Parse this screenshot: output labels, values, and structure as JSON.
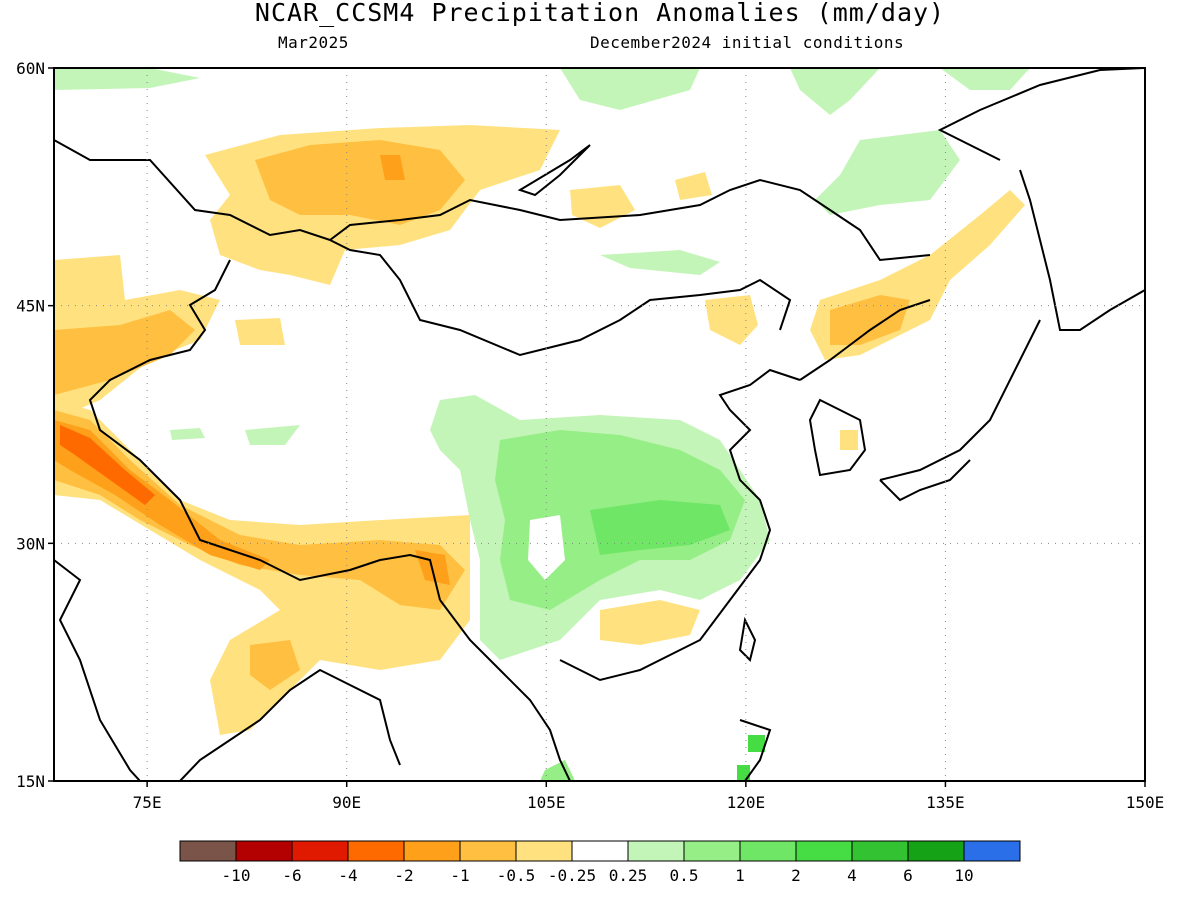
{
  "header": {
    "title": "NCAR_CCSM4 Precipitation Anomalies (mm/day)",
    "valid_month": "Mar2025",
    "init_label": "December2024 initial conditions"
  },
  "map": {
    "lon_range": [
      68,
      150
    ],
    "lat_range": [
      15,
      60
    ],
    "lat_labels": [
      "60N",
      "45N",
      "30N",
      "15N"
    ],
    "lon_labels": [
      "75E",
      "90E",
      "105E",
      "120E",
      "135E",
      "150E"
    ],
    "grid_lines": "dotted"
  },
  "colorbar": {
    "colors": [
      "#7a5449",
      "#b30000",
      "#e01a00",
      "#ff6a00",
      "#ffa01a",
      "#ffbf40",
      "#ffe27f",
      "#ffffff",
      "#c4f5b8",
      "#96ee86",
      "#6fe665",
      "#46dc44",
      "#32c232",
      "#16a216",
      "#2a6fe8"
    ],
    "labels": [
      "-10",
      "-6",
      "-4",
      "-2",
      "-1",
      "-0.5",
      "-0.25",
      "0.25",
      "0.5",
      "1",
      "2",
      "4",
      "6",
      "10"
    ]
  }
}
